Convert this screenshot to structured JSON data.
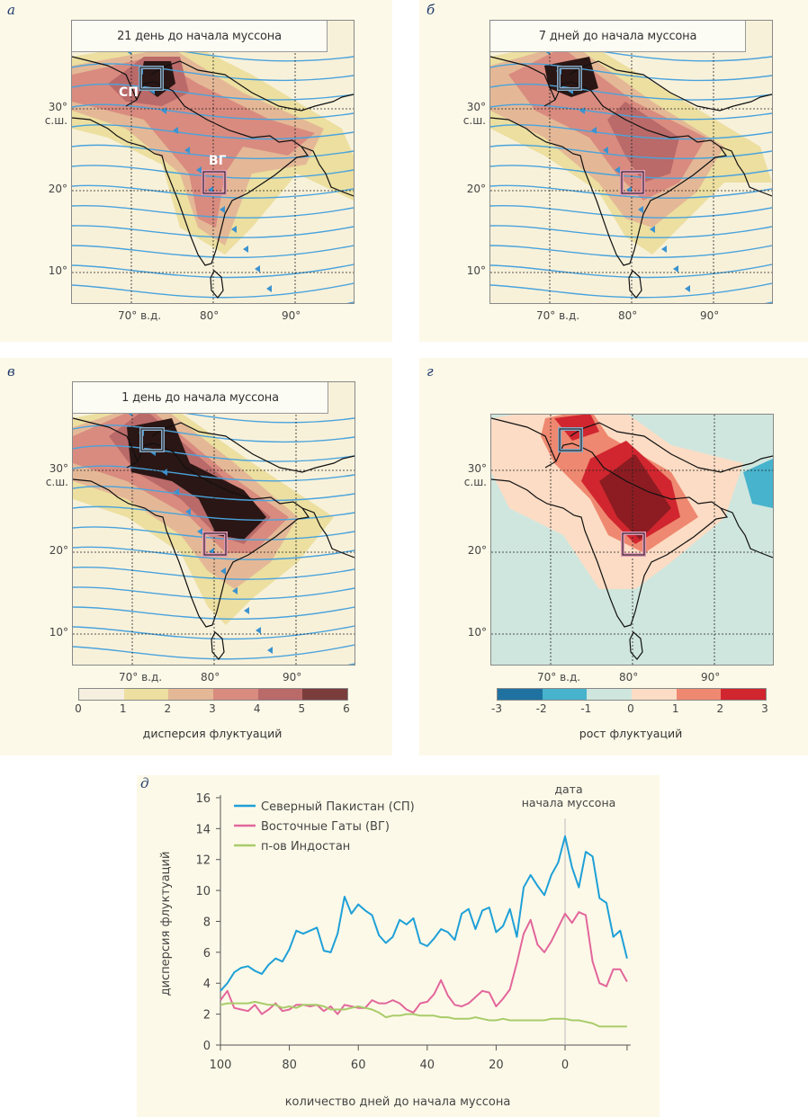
{
  "figure": {
    "panels": [
      {
        "id": "a",
        "label": "а",
        "title": "21 день до начала муссона",
        "box_labels": {
          "north": "СП",
          "east": "ВГ"
        }
      },
      {
        "id": "b",
        "label": "б",
        "title": "7 дней до начала муссона"
      },
      {
        "id": "c",
        "label": "в",
        "title": "1 день до начала муссона"
      },
      {
        "id": "d",
        "label": "г",
        "title": ""
      }
    ],
    "map_axes": {
      "lat_ticks": [
        "30°",
        "с.ш.",
        "20°",
        "10°"
      ],
      "lon_ticks": [
        "70° в.д.",
        "80°",
        "90°"
      ]
    },
    "colorbar_variance": {
      "title": "дисперсия флуктуаций",
      "ticks": [
        "0",
        "1",
        "2",
        "3",
        "4",
        "5",
        "6"
      ],
      "colors": [
        "#f6efdf",
        "#ecdfa0",
        "#e4b896",
        "#d98b7f",
        "#b96a69",
        "#7a3d3c"
      ]
    },
    "colorbar_growth": {
      "title": "рост флуктуаций",
      "ticks": [
        "-3",
        "-2",
        "-1",
        "0",
        "1",
        "2",
        "3"
      ],
      "colors": [
        "#1f72a0",
        "#47b3cd",
        "#cfe6de",
        "#fcdcc4",
        "#ef8870",
        "#d1262f"
      ]
    },
    "box_colors": {
      "north": "#8aaac6",
      "east": "#e29ab8"
    }
  },
  "chart_data": {
    "type": "line",
    "panel_label": "д",
    "title": "",
    "xlabel": "количество дней до начала муссона",
    "ylabel": "дисперсия флуктуаций",
    "xlim": [
      100,
      -18
    ],
    "ylim": [
      0,
      16
    ],
    "x_ticks": [
      "100",
      "80",
      "60",
      "40",
      "20",
      "0"
    ],
    "x_tick_values": [
      100,
      80,
      60,
      40,
      20,
      0
    ],
    "y_ticks": [
      "0",
      "2",
      "4",
      "6",
      "8",
      "10",
      "12",
      "14",
      "16"
    ],
    "y_tick_values": [
      0,
      2,
      4,
      6,
      8,
      10,
      12,
      14,
      16
    ],
    "annotation": {
      "x": 0,
      "lines": [
        "дата",
        "начала муссона"
      ]
    },
    "legend_position": "top-left",
    "x": [
      100,
      98,
      96,
      94,
      92,
      90,
      88,
      86,
      84,
      82,
      80,
      78,
      76,
      74,
      72,
      70,
      68,
      66,
      64,
      62,
      60,
      58,
      56,
      54,
      52,
      50,
      48,
      46,
      44,
      42,
      40,
      38,
      36,
      34,
      32,
      30,
      28,
      26,
      24,
      22,
      20,
      18,
      16,
      14,
      12,
      10,
      8,
      6,
      4,
      2,
      0,
      -2,
      -4,
      -6,
      -8,
      -10,
      -12,
      -14,
      -16,
      -18
    ],
    "series": [
      {
        "name": "Северный Пакистан (СП)",
        "color": "#1ea0d8",
        "values": [
          3.5,
          4.0,
          4.7,
          5.0,
          5.1,
          4.8,
          4.6,
          5.2,
          5.6,
          5.4,
          6.2,
          7.4,
          7.2,
          7.4,
          7.6,
          6.1,
          6.0,
          7.2,
          9.6,
          8.5,
          9.1,
          8.7,
          8.4,
          7.1,
          6.6,
          7.0,
          8.1,
          7.8,
          8.2,
          6.6,
          6.4,
          6.9,
          7.5,
          7.3,
          6.8,
          8.5,
          8.8,
          7.5,
          8.7,
          8.9,
          7.3,
          7.7,
          8.8,
          7.0,
          10.2,
          11.0,
          10.3,
          9.7,
          11.0,
          11.8,
          13.5,
          11.5,
          10.2,
          12.5,
          12.2,
          9.5,
          9.2,
          7.0,
          7.4,
          5.6
        ]
      },
      {
        "name": "Восточные Гаты (ВГ)",
        "color": "#e2669c",
        "values": [
          2.9,
          3.5,
          2.4,
          2.3,
          2.2,
          2.6,
          2.0,
          2.3,
          2.7,
          2.2,
          2.3,
          2.6,
          2.6,
          2.5,
          2.6,
          2.2,
          2.5,
          2.0,
          2.6,
          2.5,
          2.4,
          2.4,
          2.9,
          2.7,
          2.7,
          2.9,
          2.7,
          2.3,
          2.1,
          2.7,
          2.8,
          3.3,
          4.2,
          3.2,
          2.6,
          2.5,
          2.7,
          3.1,
          3.5,
          3.4,
          2.5,
          3.0,
          3.6,
          5.3,
          7.2,
          8.1,
          6.5,
          6.0,
          6.7,
          7.6,
          8.5,
          7.9,
          8.6,
          8.4,
          5.4,
          4.0,
          3.8,
          4.9,
          4.9,
          4.1
        ]
      },
      {
        "name": "п-ов Индостан",
        "color": "#a8cc6a",
        "values": [
          2.6,
          2.7,
          2.7,
          2.7,
          2.7,
          2.8,
          2.7,
          2.6,
          2.6,
          2.4,
          2.5,
          2.4,
          2.6,
          2.6,
          2.6,
          2.5,
          2.3,
          2.3,
          2.3,
          2.4,
          2.5,
          2.4,
          2.3,
          2.1,
          1.8,
          1.9,
          1.9,
          2.0,
          2.0,
          1.9,
          1.9,
          1.9,
          1.8,
          1.8,
          1.7,
          1.7,
          1.7,
          1.8,
          1.7,
          1.6,
          1.6,
          1.7,
          1.6,
          1.6,
          1.6,
          1.6,
          1.6,
          1.6,
          1.7,
          1.7,
          1.7,
          1.6,
          1.6,
          1.5,
          1.4,
          1.2,
          1.2,
          1.2,
          1.2,
          1.2
        ]
      }
    ]
  }
}
